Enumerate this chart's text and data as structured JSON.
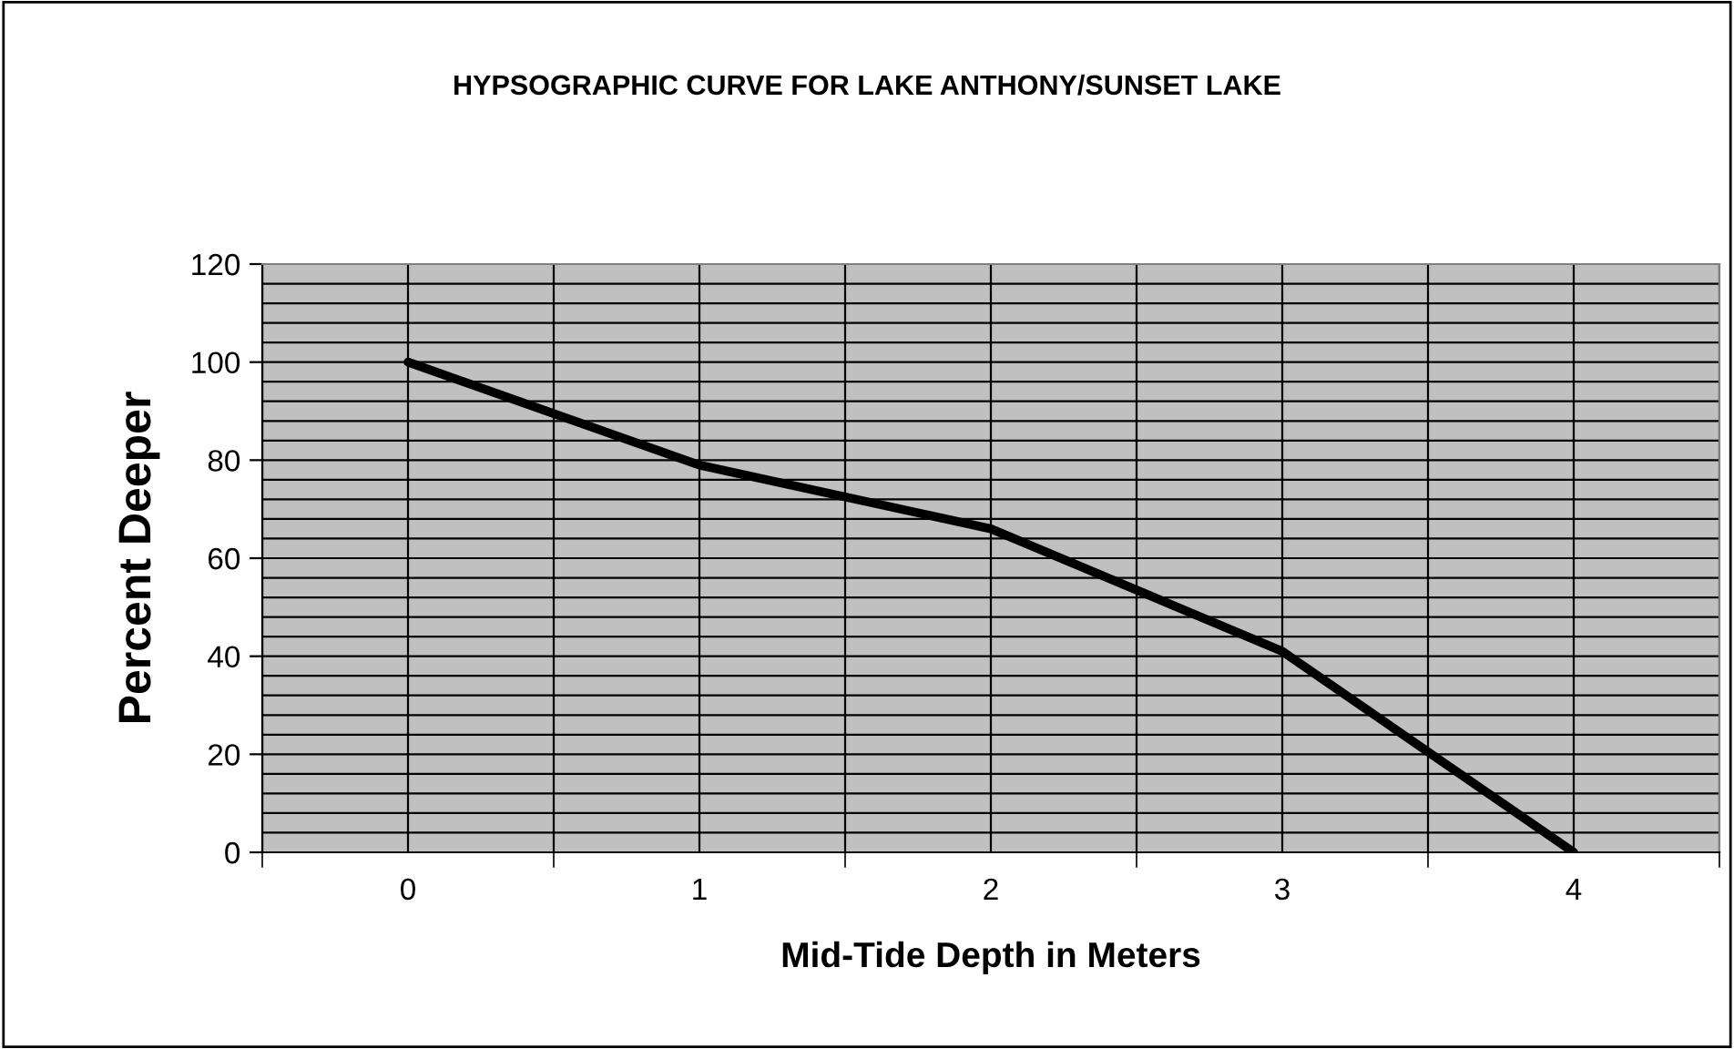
{
  "chart_data": {
    "type": "line",
    "title": "HYPSOGRAPHIC CURVE FOR LAKE ANTHONY/SUNSET LAKE",
    "xlabel": "Mid-Tide Depth in Meters",
    "ylabel": "Percent Deeper",
    "categories": [
      "0",
      "1",
      "2",
      "3",
      "4"
    ],
    "series": [
      {
        "color": "#000000",
        "values": [
          100,
          79,
          66,
          41,
          0
        ]
      }
    ],
    "ylim": [
      0,
      120
    ],
    "yticks": [
      0,
      {
        "value": 4,
        "label": null
      },
      {
        "value": 8,
        "label": null
      },
      {
        "value": 12,
        "label": null
      },
      {
        "value": 16,
        "label": null
      },
      20,
      {
        "value": 24,
        "label": null
      },
      {
        "value": 28,
        "label": null
      },
      {
        "value": 32,
        "label": null
      },
      {
        "value": 36,
        "label": null
      },
      40,
      {
        "value": 44,
        "label": null
      },
      {
        "value": 48,
        "label": null
      },
      {
        "value": 52,
        "label": null
      },
      {
        "value": 56,
        "label": null
      },
      60,
      {
        "value": 64,
        "label": null
      },
      {
        "value": 68,
        "label": null
      },
      {
        "value": 72,
        "label": null
      },
      {
        "value": 76,
        "label": null
      },
      80,
      {
        "value": 84,
        "label": null
      },
      {
        "value": 88,
        "label": null
      },
      {
        "value": 92,
        "label": null
      },
      {
        "value": 96,
        "label": null
      },
      100,
      {
        "value": 104,
        "label": null
      },
      {
        "value": 108,
        "label": null
      },
      {
        "value": 112,
        "label": null
      },
      {
        "value": 116,
        "label": null
      },
      120
    ],
    "grid": true,
    "marker": "none",
    "line_style": "solid",
    "legend": false
  }
}
